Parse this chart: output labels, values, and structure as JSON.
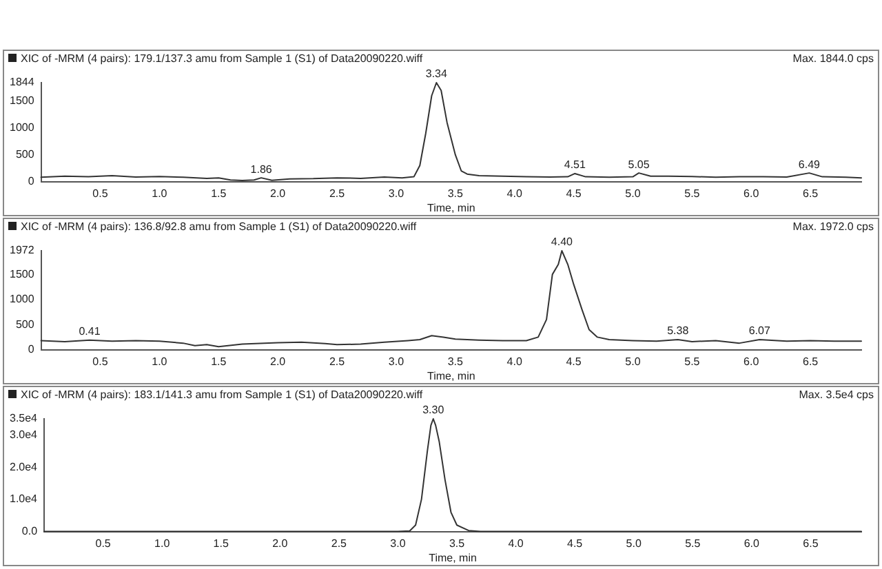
{
  "chart_data": [
    {
      "type": "line",
      "title": "XIC of -MRM (4 pairs): 179.1/137.3 amu from Sample 1 (S1) of Data20090220.wiff",
      "xlabel": "Time, min",
      "annotations": [
        "Max. 1844.0 cps",
        {
          "text": "3.34",
          "x": 3.34,
          "y": 1844
        },
        {
          "text": "1.86",
          "x": 1.86,
          "y": 70
        },
        {
          "text": "4.51",
          "x": 4.51,
          "y": 150
        },
        {
          "text": "5.05",
          "x": 5.05,
          "y": 160
        },
        {
          "text": "6.49",
          "x": 6.49,
          "y": 160
        }
      ],
      "x": [
        0,
        0.2,
        0.4,
        0.6,
        0.8,
        1.0,
        1.2,
        1.4,
        1.5,
        1.6,
        1.7,
        1.8,
        1.86,
        1.95,
        2.1,
        2.3,
        2.5,
        2.7,
        2.9,
        3.05,
        3.15,
        3.2,
        3.25,
        3.3,
        3.34,
        3.38,
        3.43,
        3.5,
        3.55,
        3.6,
        3.7,
        3.9,
        4.1,
        4.3,
        4.45,
        4.51,
        4.6,
        4.8,
        5.0,
        5.05,
        5.15,
        5.3,
        5.5,
        5.7,
        5.9,
        6.1,
        6.3,
        6.49,
        6.6,
        6.8,
        6.93
      ],
      "series": [
        {
          "color": "#333333",
          "values": [
            80,
            100,
            90,
            110,
            85,
            95,
            80,
            60,
            70,
            30,
            20,
            30,
            70,
            25,
            50,
            55,
            70,
            60,
            85,
            70,
            90,
            300,
            900,
            1600,
            1844,
            1700,
            1100,
            500,
            200,
            140,
            110,
            100,
            90,
            85,
            90,
            150,
            90,
            80,
            90,
            160,
            100,
            100,
            95,
            80,
            90,
            90,
            85,
            160,
            90,
            80,
            70
          ]
        }
      ],
      "xlim": [
        0,
        6.93
      ],
      "ylim": [
        0,
        1844
      ],
      "xticks": [
        {
          "value": 0.5,
          "label": "0.5"
        },
        {
          "value": 1,
          "label": "1.0"
        },
        {
          "value": 1.5,
          "label": "1.5"
        },
        {
          "value": 2,
          "label": "2.0"
        },
        {
          "value": 2.5,
          "label": "2.5"
        },
        {
          "value": 3,
          "label": "3.0"
        },
        {
          "value": 3.5,
          "label": "3.5"
        },
        {
          "value": 4,
          "label": "4.0"
        },
        {
          "value": 4.5,
          "label": "4.5"
        },
        {
          "value": 5,
          "label": "5.0"
        },
        {
          "value": 5.5,
          "label": "5.5"
        },
        {
          "value": 6,
          "label": "6.0"
        },
        {
          "value": 6.5,
          "label": "6.5"
        }
      ],
      "yticks": [
        0,
        500,
        1000,
        1500,
        1844
      ],
      "grid": false,
      "legend": false,
      "marker": "none",
      "line_style": "solid"
    },
    {
      "type": "line",
      "title": "XIC of -MRM (4 pairs): 136.8/92.8 amu from Sample 1 (S1) of Data20090220.wiff",
      "xlabel": "Time, min",
      "annotations": [
        "Max. 1972.0 cps",
        {
          "text": "4.40",
          "x": 4.4,
          "y": 1972
        },
        {
          "text": "0.41",
          "x": 0.41,
          "y": 190
        },
        {
          "text": "5.38",
          "x": 5.38,
          "y": 200
        },
        {
          "text": "6.07",
          "x": 6.07,
          "y": 200
        }
      ],
      "x": [
        0,
        0.2,
        0.41,
        0.6,
        0.8,
        1.0,
        1.2,
        1.3,
        1.4,
        1.5,
        1.7,
        2.0,
        2.2,
        2.4,
        2.5,
        2.7,
        2.9,
        3.1,
        3.2,
        3.3,
        3.4,
        3.5,
        3.7,
        3.9,
        4.1,
        4.2,
        4.27,
        4.32,
        4.37,
        4.4,
        4.45,
        4.5,
        4.57,
        4.63,
        4.7,
        4.8,
        5.0,
        5.2,
        5.38,
        5.5,
        5.7,
        5.9,
        6.07,
        6.3,
        6.5,
        6.7,
        6.93
      ],
      "series": [
        {
          "color": "#333333",
          "values": [
            180,
            160,
            190,
            170,
            180,
            170,
            130,
            80,
            100,
            60,
            110,
            140,
            150,
            120,
            100,
            110,
            150,
            180,
            200,
            280,
            250,
            210,
            190,
            180,
            180,
            250,
            600,
            1500,
            1700,
            1972,
            1700,
            1300,
            800,
            400,
            250,
            200,
            180,
            170,
            200,
            160,
            180,
            130,
            200,
            170,
            180,
            170,
            170
          ]
        }
      ],
      "xlim": [
        0,
        6.93
      ],
      "ylim": [
        0,
        1972
      ],
      "xticks": [
        {
          "value": 0.5,
          "label": "0.5"
        },
        {
          "value": 1,
          "label": "1.0"
        },
        {
          "value": 1.5,
          "label": "1.5"
        },
        {
          "value": 2,
          "label": "2.0"
        },
        {
          "value": 2.5,
          "label": "2.5"
        },
        {
          "value": 3,
          "label": "3.0"
        },
        {
          "value": 3.5,
          "label": "3.5"
        },
        {
          "value": 4,
          "label": "4.0"
        },
        {
          "value": 4.5,
          "label": "4.5"
        },
        {
          "value": 5,
          "label": "5.0"
        },
        {
          "value": 5.5,
          "label": "5.5"
        },
        {
          "value": 6,
          "label": "6.0"
        },
        {
          "value": 6.5,
          "label": "6.5"
        }
      ],
      "yticks": [
        0,
        500,
        1000,
        1500,
        1972
      ],
      "grid": false,
      "legend": false,
      "marker": "none",
      "line_style": "solid"
    },
    {
      "type": "line",
      "title": "XIC of -MRM (4 pairs): 183.1/141.3 amu from Sample 1 (S1) of Data20090220.wiff",
      "xlabel": "Time, min",
      "annotations": [
        "Max. 3.5e4 cps",
        {
          "text": "3.30",
          "x": 3.3,
          "y": 35000
        }
      ],
      "x": [
        0,
        1.0,
        2.0,
        3.0,
        3.1,
        3.15,
        3.2,
        3.25,
        3.28,
        3.3,
        3.32,
        3.35,
        3.4,
        3.45,
        3.5,
        3.6,
        3.7,
        5.0,
        6.93
      ],
      "series": [
        {
          "color": "#333333",
          "values": [
            0,
            0,
            0,
            0,
            200,
            2000,
            10000,
            25000,
            33000,
            35000,
            33000,
            28000,
            16000,
            6000,
            2000,
            300,
            0,
            0,
            0
          ]
        }
      ],
      "xlim": [
        0,
        6.93
      ],
      "ylim": [
        0,
        35000
      ],
      "xticks": [
        {
          "value": 0.5,
          "label": "0.5"
        },
        {
          "value": 1,
          "label": "1.0"
        },
        {
          "value": 1.5,
          "label": "1.5"
        },
        {
          "value": 2,
          "label": "2.0"
        },
        {
          "value": 2.5,
          "label": "2.5"
        },
        {
          "value": 3,
          "label": "3.0"
        },
        {
          "value": 3.5,
          "label": "3.5"
        },
        {
          "value": 4,
          "label": "4.0"
        },
        {
          "value": 4.5,
          "label": "4.5"
        },
        {
          "value": 5,
          "label": "5.0"
        },
        {
          "value": 5.5,
          "label": "5.5"
        },
        {
          "value": 6,
          "label": "6.0"
        },
        {
          "value": 6.5,
          "label": "6.5"
        }
      ],
      "yticks": [
        {
          "value": 0,
          "label": "0.0"
        },
        {
          "value": 10000,
          "label": "1.0e4"
        },
        {
          "value": 20000,
          "label": "2.0e4"
        },
        {
          "value": 30000,
          "label": "3.0e4"
        },
        {
          "value": 35000,
          "label": "3.5e4"
        }
      ],
      "grid": false,
      "legend": false,
      "marker": "none",
      "line_style": "solid"
    }
  ]
}
